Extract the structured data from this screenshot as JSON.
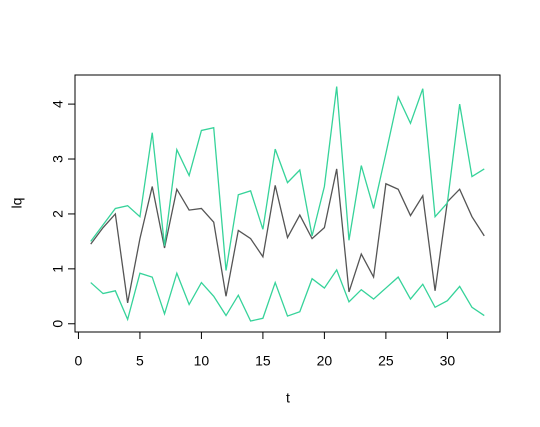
{
  "chart_data": {
    "type": "line",
    "x_label": "t",
    "y_label": "lq",
    "x": [
      1,
      2,
      3,
      4,
      5,
      6,
      7,
      8,
      9,
      10,
      11,
      12,
      13,
      14,
      15,
      16,
      17,
      18,
      19,
      20,
      21,
      22,
      23,
      24,
      25,
      26,
      27,
      28,
      29,
      30,
      31,
      32,
      33
    ],
    "series": [
      {
        "color": "#555555",
        "values": [
          1.45,
          1.75,
          2.0,
          0.38,
          1.55,
          2.5,
          1.38,
          2.45,
          2.07,
          2.1,
          1.85,
          0.5,
          1.7,
          1.55,
          1.22,
          2.52,
          1.57,
          1.98,
          1.55,
          1.75,
          2.82,
          0.58,
          1.27,
          0.85,
          2.55,
          2.45,
          1.97,
          2.33,
          0.6,
          2.22,
          2.45,
          1.95,
          1.6
        ]
      },
      {
        "color": "#36d39a",
        "values": [
          1.5,
          1.8,
          2.1,
          2.15,
          1.95,
          3.48,
          1.42,
          3.17,
          2.7,
          3.52,
          3.57,
          0.97,
          2.35,
          2.42,
          1.72,
          3.18,
          2.57,
          2.8,
          1.6,
          2.5,
          4.32,
          1.52,
          2.88,
          2.1,
          3.1,
          4.13,
          3.65,
          4.28,
          1.95,
          2.2,
          4.0,
          2.68,
          2.82
        ]
      },
      {
        "color": "#36d39a",
        "values": [
          0.75,
          0.55,
          0.6,
          0.08,
          0.92,
          0.85,
          0.18,
          0.92,
          0.35,
          0.75,
          0.5,
          0.15,
          0.52,
          0.05,
          0.1,
          0.75,
          0.14,
          0.22,
          0.82,
          0.65,
          0.98,
          0.4,
          0.62,
          0.45,
          0.65,
          0.85,
          0.45,
          0.72,
          0.3,
          0.42,
          0.68,
          0.3,
          0.15
        ]
      }
    ],
    "xlim": [
      -0.28,
      34.28
    ],
    "ylim": [
      -0.15,
      4.53
    ],
    "xticks": [
      0,
      5,
      10,
      15,
      20,
      25,
      30
    ],
    "yticks": [
      0,
      1,
      2,
      3,
      4
    ]
  }
}
